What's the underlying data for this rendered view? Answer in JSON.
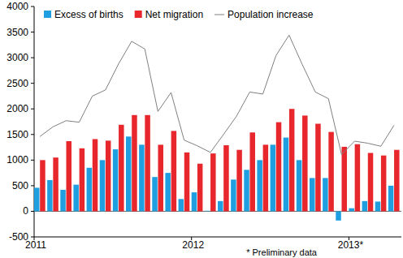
{
  "chart_data": {
    "type": "bar",
    "categories": [
      "2011",
      null,
      null,
      null,
      null,
      null,
      null,
      null,
      null,
      null,
      null,
      null,
      "2012",
      null,
      null,
      null,
      null,
      null,
      null,
      null,
      null,
      null,
      null,
      null,
      "2013*",
      null,
      null,
      null
    ],
    "series": [
      {
        "name": "Excess of births",
        "type": "bar",
        "color": "#1f9fe0",
        "values": [
          460,
          610,
          420,
          520,
          850,
          1000,
          1210,
          1460,
          1300,
          670,
          750,
          240,
          370,
          10,
          200,
          620,
          810,
          1000,
          1300,
          1440,
          1000,
          650,
          650,
          -180,
          60,
          200,
          190,
          500
        ]
      },
      {
        "name": "Net migration",
        "type": "bar",
        "color": "#e8272d",
        "values": [
          1000,
          1050,
          1370,
          1230,
          1410,
          1380,
          1690,
          1880,
          1880,
          1300,
          1570,
          1150,
          930,
          1130,
          1290,
          1200,
          1540,
          1300,
          1740,
          2000,
          1870,
          1710,
          1550,
          1260,
          1310,
          1140,
          1090,
          1200
        ]
      },
      {
        "name": "Population increase",
        "type": "line",
        "color": "#7f7f7f",
        "values": [
          1460,
          1650,
          1770,
          1740,
          2250,
          2370,
          2880,
          3320,
          3170,
          1950,
          2320,
          1390,
          1280,
          1150,
          1500,
          1860,
          2330,
          2290,
          3040,
          3440,
          2870,
          2330,
          2200,
          1110,
          1370,
          1330,
          1270,
          1680
        ]
      }
    ],
    "ylim": [
      -500,
      4000
    ],
    "yticks": [
      -500,
      0,
      500,
      1000,
      1500,
      2000,
      2500,
      3000,
      3500,
      4000
    ],
    "grid": false,
    "legend": "top",
    "annotations": [
      "* Preliminary data"
    ]
  }
}
